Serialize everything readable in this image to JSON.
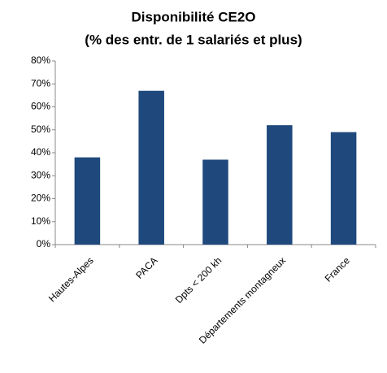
{
  "chart_data": {
    "type": "bar",
    "title": [
      "Disponibilité  CE2O",
      "(% des entr. de 1 salariés et plus)"
    ],
    "categories": [
      "Hautes-Alpes",
      "PACA",
      "Dpts < 200 kh",
      "Départements montagneux",
      "France"
    ],
    "values": [
      38,
      67,
      37,
      52,
      49
    ],
    "color": "#1f497d",
    "ylim": [
      0,
      80
    ],
    "yticks": [
      {
        "value": 0,
        "label": "0%"
      },
      {
        "value": 10,
        "label": "10%"
      },
      {
        "value": 20,
        "label": "20%"
      },
      {
        "value": 30,
        "label": "30%"
      },
      {
        "value": 40,
        "label": "40%"
      },
      {
        "value": 50,
        "label": "50%"
      },
      {
        "value": 60,
        "label": "60%"
      },
      {
        "value": 70,
        "label": "70%"
      },
      {
        "value": 80,
        "label": "80%"
      }
    ],
    "grid": false
  }
}
